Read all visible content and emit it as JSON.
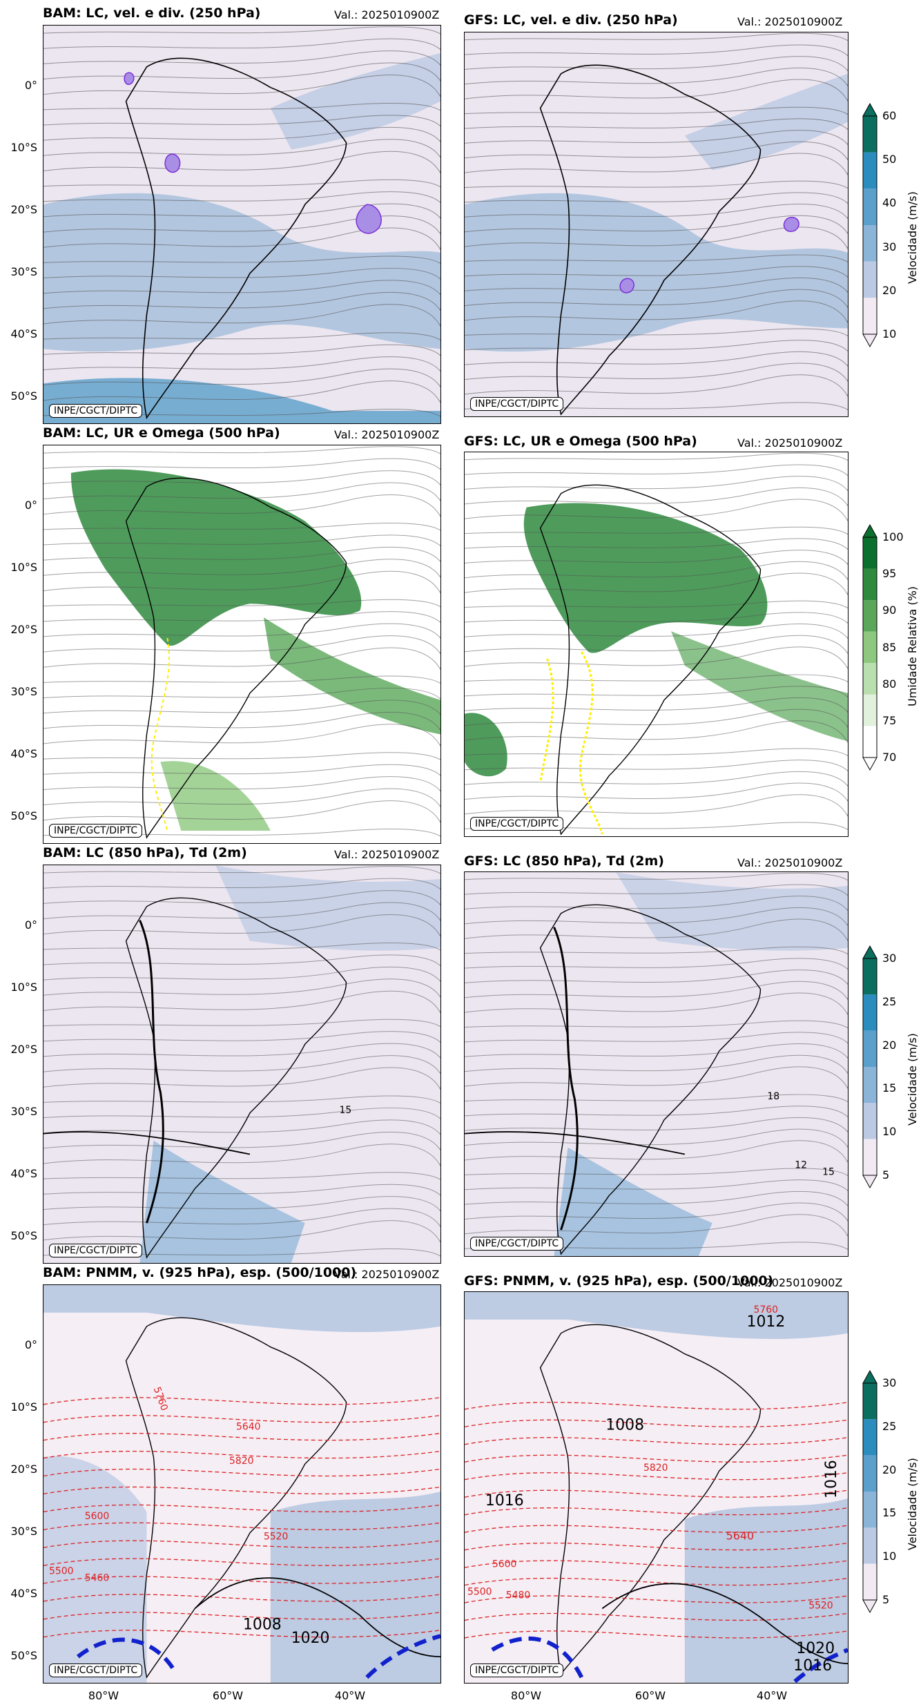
{
  "panels": [
    {
      "title": "BAM: LC, vel. e div. (250 hPa)",
      "valid": "Val.: 2025010900Z",
      "credit": "INPE/CGCT/DIPTC"
    },
    {
      "title": "GFS: LC, vel. e div. (250 hPa)",
      "valid": "Val.: 2025010900Z",
      "credit": "INPE/CGCT/DIPTC"
    },
    {
      "title": "BAM: LC, UR e Omega (500 hPa)",
      "valid": "Val.: 2025010900Z",
      "credit": "INPE/CGCT/DIPTC"
    },
    {
      "title": "GFS: LC, UR e Omega (500 hPa)",
      "valid": "Val.: 2025010900Z",
      "credit": "INPE/CGCT/DIPTC"
    },
    {
      "title": "BAM: LC (850 hPa), Td (2m)",
      "valid": "Val.: 2025010900Z",
      "credit": "INPE/CGCT/DIPTC"
    },
    {
      "title": "GFS: LC (850 hPa), Td (2m)",
      "valid": "Val.: 2025010900Z",
      "credit": "INPE/CGCT/DIPTC"
    },
    {
      "title": "BAM: PNMM, v. (925 hPa), esp. (500/1000)",
      "valid": "Val.: 2025010900Z",
      "credit": "INPE/CGCT/DIPTC"
    },
    {
      "title": "GFS: PNMM, v. (925 hPa), esp. (500/1000)",
      "valid": "Val.: 2025010900Z",
      "credit": "INPE/CGCT/DIPTC"
    }
  ],
  "lat_ticks": [
    "0°",
    "10°S",
    "20°S",
    "30°S",
    "40°S",
    "50°S"
  ],
  "lon_ticks": [
    "80°W",
    "60°W",
    "40°W"
  ],
  "colorbars": [
    {
      "label": "Velocidade (m/s)",
      "ticks": [
        "60",
        "50",
        "40",
        "30",
        "20",
        "10"
      ],
      "colors": [
        "#0b6e5e",
        "#2b8cbe",
        "#5b9fcb",
        "#8ab4d8",
        "#bcc9e3",
        "#f2eaf3"
      ]
    },
    {
      "label": "Umidade Relativa (%)",
      "ticks": [
        "100",
        "95",
        "90",
        "85",
        "80",
        "75",
        "70"
      ],
      "colors": [
        "#0b6f2e",
        "#2f8a3e",
        "#5aa75a",
        "#8dc87e",
        "#b9dfae",
        "#e2f1dc",
        "#ffffff"
      ]
    },
    {
      "label": "Velocidade (m/s)",
      "ticks": [
        "30",
        "25",
        "20",
        "15",
        "10",
        "5"
      ],
      "colors": [
        "#0b6e5e",
        "#2b8cbe",
        "#5b9fcb",
        "#8ab4d8",
        "#bcc9e3",
        "#f2eaf3"
      ]
    },
    {
      "label": "Velocidade (m/s)",
      "ticks": [
        "30",
        "25",
        "20",
        "15",
        "10",
        "5"
      ],
      "colors": [
        "#0b6e5e",
        "#2b8cbe",
        "#5b9fcb",
        "#8ab4d8",
        "#bcc9e3",
        "#f2eaf3"
      ]
    }
  ],
  "contour_labels": {
    "bam_850": [
      "15"
    ],
    "gfs_850": [
      "18",
      "15",
      "12"
    ],
    "bam_pnmm": [
      "1008",
      "1020",
      "5760",
      "5600",
      "5500",
      "5460",
      "5820",
      "5520",
      "5640"
    ],
    "gfs_pnmm": [
      "5760",
      "1012",
      "1008",
      "1016",
      "1016",
      "5640",
      "5600",
      "5500",
      "5480",
      "5820",
      "5520",
      "1020",
      "1016"
    ]
  },
  "colors": {
    "land_outline": "#000000",
    "streamline": "#555555",
    "isohypse": "#dd2222",
    "front": "#1122cc",
    "humidity": "#2f8a3e",
    "omega": "#ffee00",
    "divergence": "#7a2fd6"
  }
}
